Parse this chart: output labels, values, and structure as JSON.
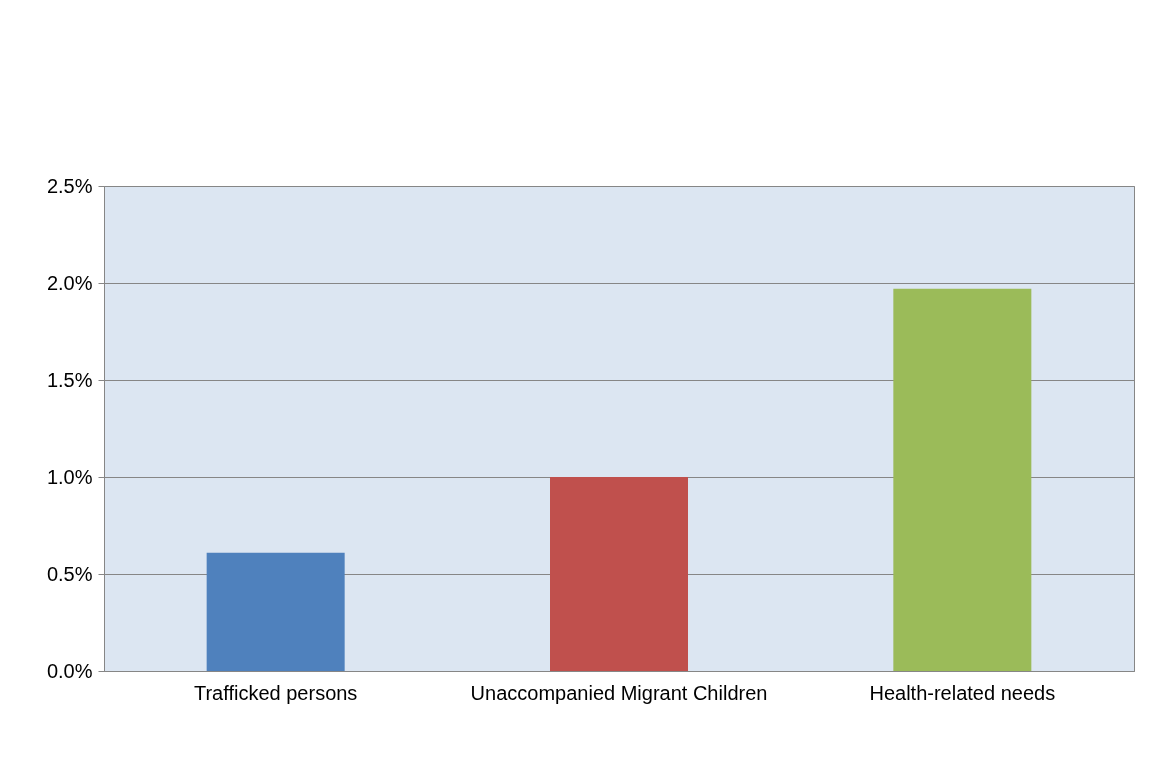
{
  "chart_data": {
    "type": "bar",
    "categories": [
      "Trafficked persons",
      "Unaccompanied Migrant Children",
      "Health-related needs"
    ],
    "values": [
      0.61,
      1.0,
      1.97
    ],
    "colors": [
      "#4f81bd",
      "#c0504d",
      "#9bbb59"
    ],
    "ylim": [
      0,
      2.5
    ],
    "yticks": [
      {
        "value": 0,
        "label": "0.0%"
      },
      {
        "value": 0.5,
        "label": "0.5%"
      },
      {
        "value": 1.0,
        "label": "1.0%"
      },
      {
        "value": 1.5,
        "label": "1.5%"
      },
      {
        "value": 2.0,
        "label": "2.0%"
      },
      {
        "value": 2.5,
        "label": "2.5%"
      }
    ],
    "grid": "y"
  }
}
